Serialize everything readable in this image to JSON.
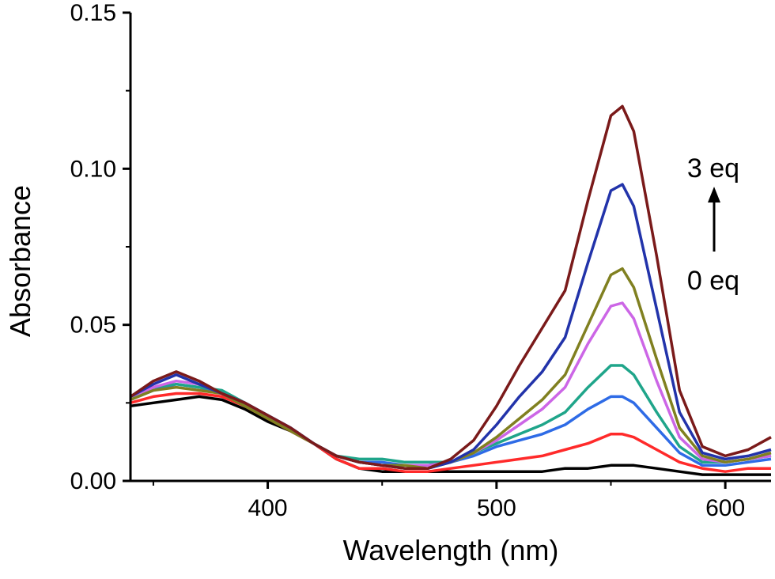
{
  "chart_data": {
    "type": "line",
    "title": "",
    "xlabel": "Wavelength (nm)",
    "ylabel": "Absorbance",
    "xlim": [
      340,
      620
    ],
    "ylim": [
      0,
      0.15
    ],
    "x_ticks": [
      400,
      500,
      600
    ],
    "x_tick_labels": [
      "400",
      "500",
      "600"
    ],
    "y_ticks": [
      0.0,
      0.05,
      0.1,
      0.15
    ],
    "y_tick_labels": [
      "0.00",
      "0.05",
      "0.10",
      "0.15"
    ],
    "grid": false,
    "annotations": {
      "top_label": "3 eq",
      "bottom_label": "0 eq",
      "arrow": "up"
    },
    "series": [
      {
        "color": "#000000",
        "x": [
          340,
          350,
          360,
          370,
          380,
          390,
          400,
          410,
          420,
          430,
          440,
          450,
          460,
          470,
          480,
          490,
          500,
          510,
          520,
          530,
          540,
          550,
          555,
          560,
          570,
          580,
          590,
          600,
          610,
          620
        ],
        "values": [
          0.024,
          0.025,
          0.026,
          0.027,
          0.026,
          0.023,
          0.019,
          0.016,
          0.012,
          0.007,
          0.004,
          0.003,
          0.003,
          0.003,
          0.003,
          0.003,
          0.003,
          0.003,
          0.003,
          0.004,
          0.004,
          0.005,
          0.005,
          0.005,
          0.004,
          0.003,
          0.002,
          0.002,
          0.002,
          0.002
        ]
      },
      {
        "color": "#ff2a2a",
        "x": [
          340,
          350,
          360,
          370,
          380,
          390,
          400,
          410,
          420,
          430,
          440,
          450,
          460,
          470,
          480,
          490,
          500,
          510,
          520,
          530,
          540,
          550,
          555,
          560,
          570,
          580,
          590,
          600,
          610,
          620
        ],
        "values": [
          0.025,
          0.027,
          0.028,
          0.028,
          0.027,
          0.024,
          0.02,
          0.016,
          0.012,
          0.007,
          0.004,
          0.004,
          0.003,
          0.003,
          0.004,
          0.005,
          0.006,
          0.007,
          0.008,
          0.01,
          0.012,
          0.015,
          0.015,
          0.014,
          0.01,
          0.006,
          0.004,
          0.003,
          0.004,
          0.004
        ]
      },
      {
        "color": "#2e6be6",
        "x": [
          340,
          350,
          360,
          370,
          380,
          390,
          400,
          410,
          420,
          430,
          440,
          450,
          460,
          470,
          480,
          490,
          500,
          510,
          520,
          530,
          540,
          550,
          555,
          560,
          570,
          580,
          590,
          600,
          610,
          620
        ],
        "values": [
          0.026,
          0.029,
          0.031,
          0.03,
          0.028,
          0.025,
          0.021,
          0.017,
          0.012,
          0.008,
          0.006,
          0.006,
          0.005,
          0.005,
          0.006,
          0.008,
          0.011,
          0.013,
          0.015,
          0.018,
          0.023,
          0.027,
          0.027,
          0.025,
          0.017,
          0.009,
          0.005,
          0.005,
          0.006,
          0.007
        ]
      },
      {
        "color": "#1fa58a",
        "x": [
          340,
          350,
          360,
          370,
          380,
          390,
          400,
          410,
          420,
          430,
          440,
          450,
          460,
          470,
          480,
          490,
          500,
          510,
          520,
          530,
          540,
          550,
          555,
          560,
          570,
          580,
          590,
          600,
          610,
          620
        ],
        "values": [
          0.027,
          0.03,
          0.031,
          0.03,
          0.029,
          0.025,
          0.021,
          0.017,
          0.012,
          0.008,
          0.007,
          0.007,
          0.006,
          0.006,
          0.006,
          0.009,
          0.012,
          0.015,
          0.018,
          0.022,
          0.03,
          0.037,
          0.037,
          0.034,
          0.022,
          0.011,
          0.006,
          0.006,
          0.007,
          0.008
        ]
      },
      {
        "color": "#cc66e6",
        "x": [
          340,
          350,
          360,
          370,
          380,
          390,
          400,
          410,
          420,
          430,
          440,
          450,
          460,
          470,
          480,
          490,
          500,
          510,
          520,
          530,
          540,
          550,
          555,
          560,
          570,
          580,
          590,
          600,
          610,
          620
        ],
        "values": [
          0.027,
          0.03,
          0.032,
          0.031,
          0.028,
          0.025,
          0.021,
          0.017,
          0.012,
          0.008,
          0.006,
          0.005,
          0.005,
          0.005,
          0.006,
          0.009,
          0.013,
          0.018,
          0.023,
          0.03,
          0.044,
          0.056,
          0.057,
          0.052,
          0.032,
          0.014,
          0.007,
          0.006,
          0.007,
          0.008
        ]
      },
      {
        "color": "#808020",
        "x": [
          340,
          350,
          360,
          370,
          380,
          390,
          400,
          410,
          420,
          430,
          440,
          450,
          460,
          470,
          480,
          490,
          500,
          510,
          520,
          530,
          540,
          550,
          555,
          560,
          570,
          580,
          590,
          600,
          610,
          620
        ],
        "values": [
          0.026,
          0.029,
          0.03,
          0.029,
          0.028,
          0.024,
          0.02,
          0.016,
          0.012,
          0.008,
          0.006,
          0.005,
          0.005,
          0.004,
          0.006,
          0.009,
          0.014,
          0.02,
          0.026,
          0.034,
          0.05,
          0.066,
          0.068,
          0.062,
          0.039,
          0.017,
          0.008,
          0.006,
          0.007,
          0.009
        ]
      },
      {
        "color": "#2233aa",
        "x": [
          340,
          350,
          360,
          370,
          380,
          390,
          400,
          410,
          420,
          430,
          440,
          450,
          460,
          470,
          480,
          490,
          500,
          510,
          520,
          530,
          540,
          550,
          555,
          560,
          570,
          580,
          590,
          600,
          610,
          620
        ],
        "values": [
          0.027,
          0.031,
          0.034,
          0.031,
          0.028,
          0.025,
          0.021,
          0.017,
          0.012,
          0.008,
          0.006,
          0.005,
          0.004,
          0.004,
          0.006,
          0.01,
          0.018,
          0.027,
          0.035,
          0.046,
          0.07,
          0.093,
          0.095,
          0.088,
          0.055,
          0.022,
          0.009,
          0.007,
          0.008,
          0.01
        ]
      },
      {
        "color": "#7a1a1a",
        "x": [
          340,
          350,
          360,
          370,
          380,
          390,
          400,
          410,
          420,
          430,
          440,
          450,
          460,
          470,
          480,
          490,
          500,
          510,
          520,
          530,
          540,
          550,
          555,
          560,
          570,
          580,
          590,
          600,
          610,
          620
        ],
        "values": [
          0.027,
          0.032,
          0.035,
          0.032,
          0.028,
          0.025,
          0.021,
          0.017,
          0.012,
          0.008,
          0.006,
          0.005,
          0.004,
          0.004,
          0.007,
          0.013,
          0.024,
          0.037,
          0.049,
          0.061,
          0.09,
          0.117,
          0.12,
          0.112,
          0.072,
          0.029,
          0.011,
          0.008,
          0.01,
          0.014
        ]
      }
    ]
  }
}
